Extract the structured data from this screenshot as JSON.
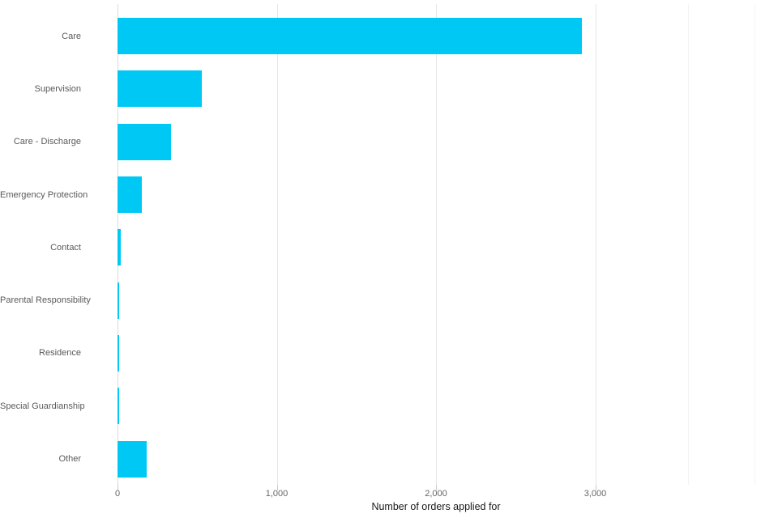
{
  "page": {
    "background_color": "#ffffff"
  },
  "chart_data": {
    "type": "bar",
    "orientation": "horizontal",
    "title": "",
    "categories": [
      "Care",
      "Supervision",
      "Care - Discharge",
      "Emergency Protection",
      "Contact",
      "Parental Responsibility",
      "Residence",
      "Special Guardianship",
      "Other"
    ],
    "values": [
      2914,
      527,
      337,
      152,
      20,
      10,
      10,
      10,
      183
    ],
    "xlabel": "Number of orders applied for",
    "ylabel": "",
    "xlim": [
      0,
      4000
    ],
    "xticks": [
      {
        "value": 0,
        "label": "0"
      },
      {
        "value": 1000,
        "label": "1,000"
      },
      {
        "value": 2000,
        "label": "2,000"
      },
      {
        "value": 3000,
        "label": "3,000"
      }
    ],
    "grid": "vertical",
    "legend_position": "none",
    "bar_color": "#00c8f5",
    "axis_line_color": "#dcdcdc",
    "gridline_color": "#e6e6e6",
    "faint_gridlines": [
      3580,
      4000
    ],
    "faint_gridline_color": "#f3f3f3",
    "tick_color": "#cccccc",
    "category_label_color": "#5a5a5a",
    "tick_label_color": "#666666",
    "axis_title_color": "#1a1a1a"
  }
}
